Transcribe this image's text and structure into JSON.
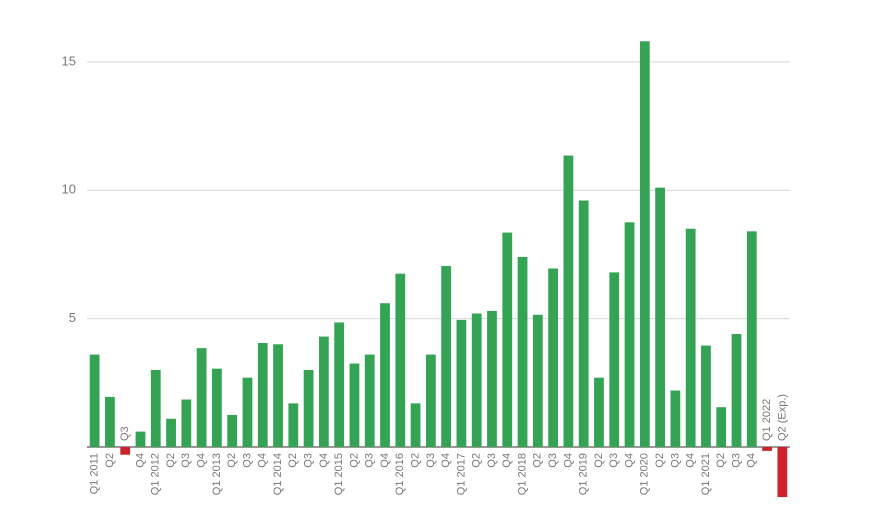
{
  "chart_data": {
    "type": "bar",
    "categories": [
      "Q1 2011",
      "Q2",
      "Q3",
      "Q4",
      "Q1 2012",
      "Q2",
      "Q3",
      "Q4",
      "Q1 2013",
      "Q2",
      "Q3",
      "Q4",
      "Q1 2014",
      "Q2",
      "Q3",
      "Q4",
      "Q1 2015",
      "Q2",
      "Q3",
      "Q4",
      "Q1 2016",
      "Q2",
      "Q3",
      "Q4",
      "Q1 2017",
      "Q2",
      "Q3",
      "Q4",
      "Q1 2018",
      "Q2",
      "Q3",
      "Q4",
      "Q1 2019",
      "Q2",
      "Q3",
      "Q4",
      "Q1 2020",
      "Q2",
      "Q3",
      "Q4",
      "Q1 2021",
      "Q2",
      "Q3",
      "Q4",
      "Q1 2022",
      "Q2 (Exp.)"
    ],
    "values": [
      3.6,
      1.95,
      -0.3,
      0.6,
      3.0,
      1.1,
      1.85,
      3.85,
      3.05,
      1.25,
      2.7,
      4.05,
      4.0,
      1.7,
      3.0,
      4.3,
      4.85,
      3.25,
      3.6,
      5.6,
      6.75,
      1.7,
      3.6,
      7.05,
      4.95,
      5.2,
      5.3,
      8.35,
      7.4,
      5.15,
      6.95,
      11.35,
      9.6,
      2.7,
      6.8,
      8.75,
      15.8,
      10.1,
      2.2,
      8.5,
      3.95,
      1.55,
      4.4,
      8.4,
      -0.15,
      -1.95
    ],
    "color": "#35a354",
    "negative_color": "#d0222a",
    "ylim": [
      -2.2,
      16.2
    ],
    "yticks": [
      5,
      10,
      15
    ],
    "grid": true
  }
}
